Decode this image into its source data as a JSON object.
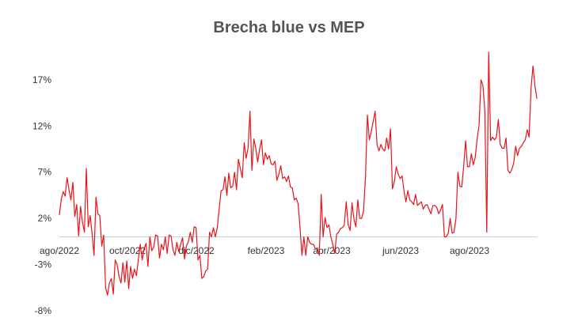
{
  "chart_data": {
    "type": "line",
    "title": "Brecha blue vs MEP",
    "xlabel": "",
    "ylabel": "",
    "x_tick_labels": [
      "ago/2022",
      "oct/2022",
      "dic/2022",
      "feb/2023",
      "abr/2023",
      "jun/2023",
      "ago/2023"
    ],
    "y_tick_labels": [
      "17%",
      "12%",
      "7%",
      "2%",
      "-3%",
      "-8%"
    ],
    "y_ticks": [
      17,
      12,
      7,
      2,
      -3,
      -8
    ],
    "ylim": [
      -8,
      20
    ],
    "grid": false,
    "legend": "none",
    "color": "#e8141b",
    "series": [
      {
        "values": [
          2.4,
          4.1,
          4.9,
          4.4,
          6.4,
          5.1,
          4.0,
          5.9,
          2.2,
          3.5,
          0.1,
          3.3,
          1.6,
          0.5,
          7.4,
          1.1,
          2.3,
          0.3,
          -2.0,
          4.3,
          2.5,
          2.3,
          -1.0,
          0.2,
          -5.5,
          -6.3,
          -5.0,
          -4.5,
          -6.2,
          -2.5,
          -3.0,
          -4.3,
          -5.0,
          -2.8,
          -4.9,
          -2.6,
          -5.6,
          -3.2,
          -4.5,
          -3.5,
          -4.2,
          -2.5,
          -0.8,
          -2.5,
          -1.3,
          -0.7,
          -3.2,
          0.0,
          -1.5,
          -1.1,
          0.2,
          0.1,
          -2.3,
          -0.8,
          -1.4,
          0.0,
          -1.8,
          0.2,
          0.1,
          -1.4,
          -2.0,
          -0.6,
          -1.6,
          -0.8,
          -0.1,
          -2.4,
          -1.0,
          -0.5,
          0.5,
          -0.6,
          1.1,
          1.0,
          -2.5,
          -2.0,
          -4.5,
          -4.3,
          -3.7,
          -3.5,
          0.5,
          0.0,
          1.0,
          0.0,
          1.0,
          3.0,
          5.0,
          5.1,
          6.5,
          4.5,
          6.9,
          5.3,
          5.5,
          7.0,
          5.1,
          8.4,
          7.4,
          6.4,
          10.2,
          8.5,
          9.6,
          13.6,
          7.2,
          10.6,
          9.6,
          8.1,
          9.5,
          10.5,
          7.8,
          9.1,
          8.4,
          8.8,
          7.9,
          7.8,
          8.2,
          6.1,
          6.8,
          7.7,
          6.3,
          6.5,
          6.0,
          6.6,
          5.4,
          5.3,
          4.0,
          4.2,
          3.6,
          1.0,
          -2.0,
          0.0,
          -2.0,
          0.0,
          -0.6,
          -0.8,
          -0.8,
          -1.3,
          -1.2,
          -2.0,
          4.6,
          0.0,
          2.1,
          1.0,
          1.3,
          0.0,
          -0.8,
          -1.8,
          0.3,
          0.5,
          0.9,
          1.0,
          1.3,
          3.8,
          1.3,
          0.7,
          3.7,
          1.9,
          1.1,
          4.0,
          2.0,
          2.0,
          2.8,
          6.5,
          13.2,
          10.5,
          11.4,
          12.5,
          13.6,
          10.0,
          9.3,
          10.0,
          9.5,
          9.3,
          10.7,
          9.5,
          11.7,
          5.2,
          6.0,
          7.6,
          6.8,
          6.3,
          6.6,
          5.0,
          3.8,
          5.0,
          4.0,
          3.8,
          3.5,
          4.6,
          3.4,
          3.6,
          3.8,
          3.0,
          3.4,
          3.5,
          3.0,
          2.5,
          3.4,
          3.4,
          3.2,
          2.5,
          2.9,
          3.5,
          0.0,
          0.0,
          0.4,
          2.0,
          0.4,
          0.5,
          2.0,
          7.0,
          5.5,
          5.4,
          7.6,
          10.4,
          7.6,
          7.6,
          9.0,
          7.8,
          8.6,
          10.6,
          12.1,
          17.0,
          16.4,
          13.6,
          0.5,
          20.0,
          10.4,
          10.8,
          10.5,
          10.8,
          12.7,
          10.0,
          9.6,
          9.6,
          10.7,
          7.2,
          6.9,
          7.3,
          8.0,
          9.8,
          8.8,
          9.6,
          9.8,
          10.2,
          10.5,
          11.6,
          10.8,
          16.1,
          18.5,
          16.4,
          15.0
        ]
      }
    ]
  }
}
